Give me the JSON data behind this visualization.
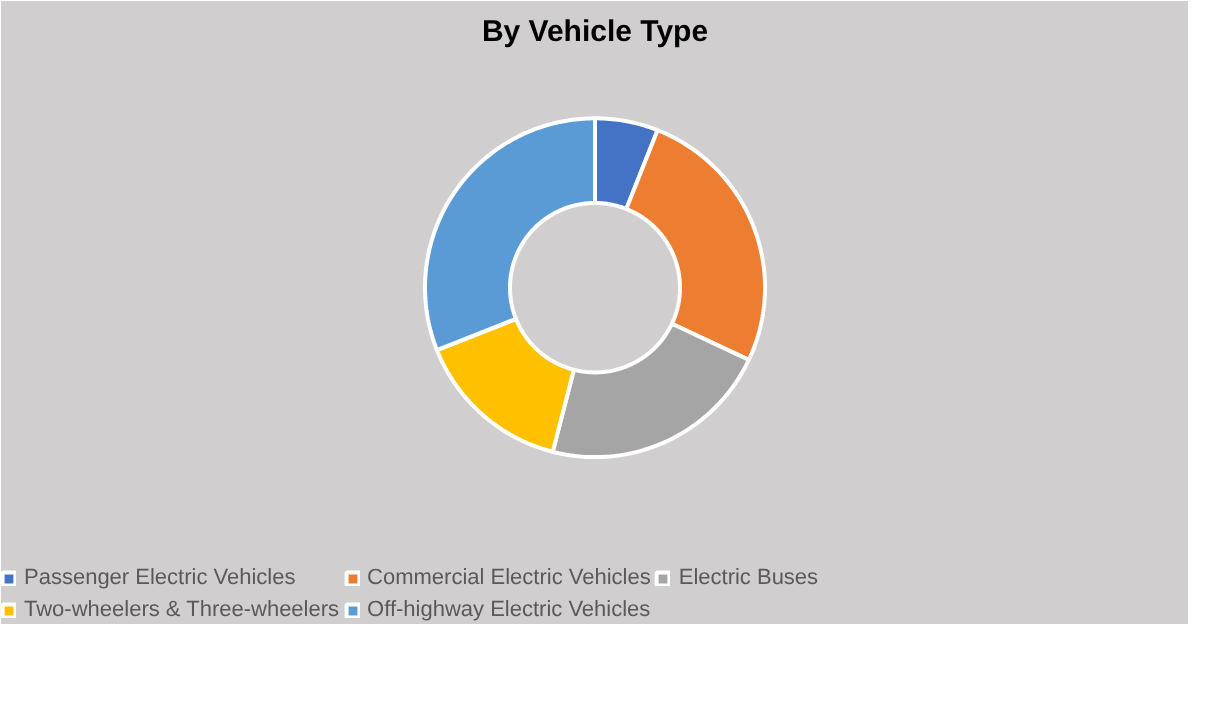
{
  "chart_data": {
    "type": "donut",
    "title": "By Vehicle Type",
    "categories": [
      "Passenger Electric Vehicles",
      "Commercial Electric Vehicles",
      "Electric Buses",
      "Two-wheelers & Three-wheelers",
      "Off-highway Electric Vehicles"
    ],
    "values": [
      6,
      26,
      22,
      15,
      31
    ],
    "colors": [
      "#4472c4",
      "#ed7d31",
      "#a5a5a5",
      "#ffc000",
      "#5b9bd5"
    ],
    "legend": "bottom"
  }
}
